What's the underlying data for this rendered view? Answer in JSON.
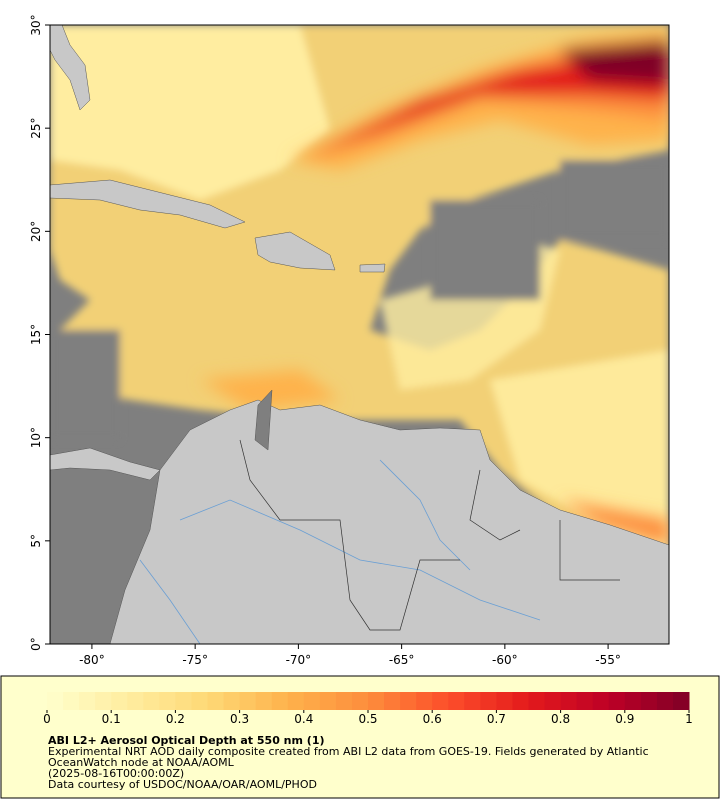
{
  "map": {
    "lonlim": [
      -82.03,
      -52.05
    ],
    "latlim": [
      0,
      30
    ],
    "lonticks": [
      {
        "value": -80,
        "label": "-80°"
      },
      {
        "value": -75,
        "label": "-75°"
      },
      {
        "value": -70,
        "label": "-70°"
      },
      {
        "value": -65,
        "label": "-65°"
      },
      {
        "value": -60,
        "label": "-60°"
      },
      {
        "value": -55,
        "label": "-55°"
      }
    ],
    "latticks": [
      {
        "value": 0,
        "label": "0°"
      },
      {
        "value": 5,
        "label": "5°"
      },
      {
        "value": 10,
        "label": "10°"
      },
      {
        "value": 15,
        "label": "15°"
      },
      {
        "value": 20,
        "label": "20°"
      },
      {
        "value": 25,
        "label": "25°"
      },
      {
        "value": 30,
        "label": "30°"
      }
    ]
  },
  "colorbar": {
    "lim": [
      0,
      1
    ],
    "ticks": [
      0,
      0.1,
      0.2,
      0.3,
      0.4,
      0.5,
      0.6,
      0.7,
      0.8,
      0.9,
      1
    ],
    "colors": [
      "#ffffcc",
      "#ffeda0",
      "#fed976",
      "#feb24c",
      "#fd8d3c",
      "#fc4e2a",
      "#e31a1c",
      "#bd0026",
      "#800026"
    ]
  },
  "caption": {
    "title": "ABI L2+ Aerosol Optical Depth at 550 nm (1)",
    "lines": [
      "Experimental NRT AOD daily composite created from ABI L2 data from GOES-19. Fields generated by Atlantic",
      "OceanWatch node at NOAA/AOML",
      "(2025-08-16T00:00:00Z)",
      "Data courtesy of USDOC/NOAA/OAR/AOML/PHOD"
    ]
  }
}
